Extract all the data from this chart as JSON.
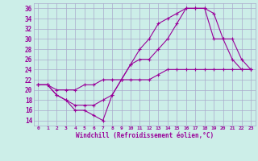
{
  "xlabel": "Windchill (Refroidissement éolien,°C)",
  "background_color": "#cceee8",
  "grid_color": "#aaaacc",
  "line_color": "#990099",
  "xlim": [
    -0.5,
    23.5
  ],
  "ylim": [
    13,
    37
  ],
  "xticks": [
    0,
    1,
    2,
    3,
    4,
    5,
    6,
    7,
    8,
    9,
    10,
    11,
    12,
    13,
    14,
    15,
    16,
    17,
    18,
    19,
    20,
    21,
    22,
    23
  ],
  "yticks": [
    14,
    16,
    18,
    20,
    22,
    24,
    26,
    28,
    30,
    32,
    34,
    36
  ],
  "series1_x": [
    0,
    1,
    2,
    3,
    4,
    5,
    6,
    7,
    8,
    9,
    10,
    11,
    12,
    13,
    14,
    15,
    16,
    17,
    18,
    19,
    20,
    21,
    22,
    23
  ],
  "series1_y": [
    21,
    21,
    19,
    18,
    16,
    16,
    15,
    14,
    19,
    22,
    25,
    28,
    30,
    33,
    34,
    35,
    36,
    36,
    36,
    30,
    30,
    26,
    24,
    24
  ],
  "series2_x": [
    0,
    1,
    2,
    3,
    4,
    5,
    6,
    7,
    8,
    9,
    10,
    11,
    12,
    13,
    14,
    15,
    16,
    17,
    18,
    19,
    20,
    21,
    22,
    23
  ],
  "series2_y": [
    21,
    21,
    19,
    18,
    17,
    17,
    17,
    18,
    19,
    22,
    25,
    26,
    26,
    28,
    30,
    33,
    36,
    36,
    36,
    35,
    30,
    30,
    26,
    24
  ],
  "series3_x": [
    0,
    1,
    2,
    3,
    4,
    5,
    6,
    7,
    8,
    9,
    10,
    11,
    12,
    13,
    14,
    15,
    16,
    17,
    18,
    19,
    20,
    21,
    22,
    23
  ],
  "series3_y": [
    21,
    21,
    20,
    20,
    20,
    21,
    21,
    22,
    22,
    22,
    22,
    22,
    22,
    23,
    24,
    24,
    24,
    24,
    24,
    24,
    24,
    24,
    24,
    24
  ]
}
